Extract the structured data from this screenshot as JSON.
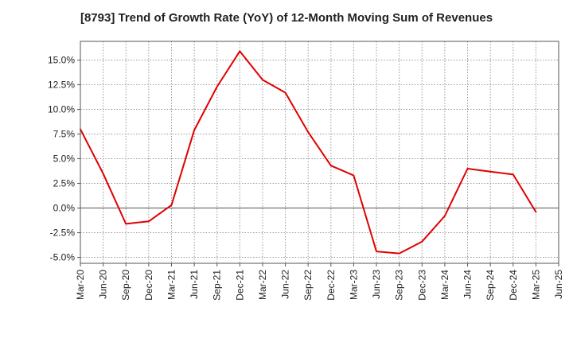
{
  "chart_data": {
    "type": "line",
    "title": "[8793]  Trend of Growth Rate (YoY) of 12-Month Moving Sum of Revenues",
    "xlabel": "",
    "ylabel": "",
    "x": [
      "Mar-20",
      "Jun-20",
      "Sep-20",
      "Dec-20",
      "Mar-21",
      "Jun-21",
      "Sep-21",
      "Dec-21",
      "Mar-22",
      "Jun-22",
      "Sep-22",
      "Dec-22",
      "Mar-23",
      "Jun-23",
      "Sep-23",
      "Dec-23",
      "Mar-24",
      "Jun-24",
      "Sep-24",
      "Dec-24",
      "Mar-25",
      "Jun-25"
    ],
    "series": [
      {
        "name": "",
        "color": "#e00000",
        "values": [
          8.0,
          3.5,
          -1.6,
          -1.35,
          0.3,
          7.9,
          12.3,
          15.9,
          13.0,
          11.7,
          7.7,
          4.3,
          3.3,
          -4.4,
          -4.6,
          -3.4,
          -0.8,
          4.0,
          3.7,
          3.4,
          -0.4,
          null
        ]
      }
    ],
    "yticks": [
      -5.0,
      -2.5,
      0.0,
      2.5,
      5.0,
      7.5,
      10.0,
      12.5,
      15.0
    ],
    "ytick_labels": [
      "-5.0%",
      "-2.5%",
      "0.0%",
      "2.5%",
      "5.0%",
      "7.5%",
      "10.0%",
      "12.5%",
      "15.0%"
    ],
    "ylim": [
      -5.6,
      16.9
    ],
    "grid": true
  }
}
